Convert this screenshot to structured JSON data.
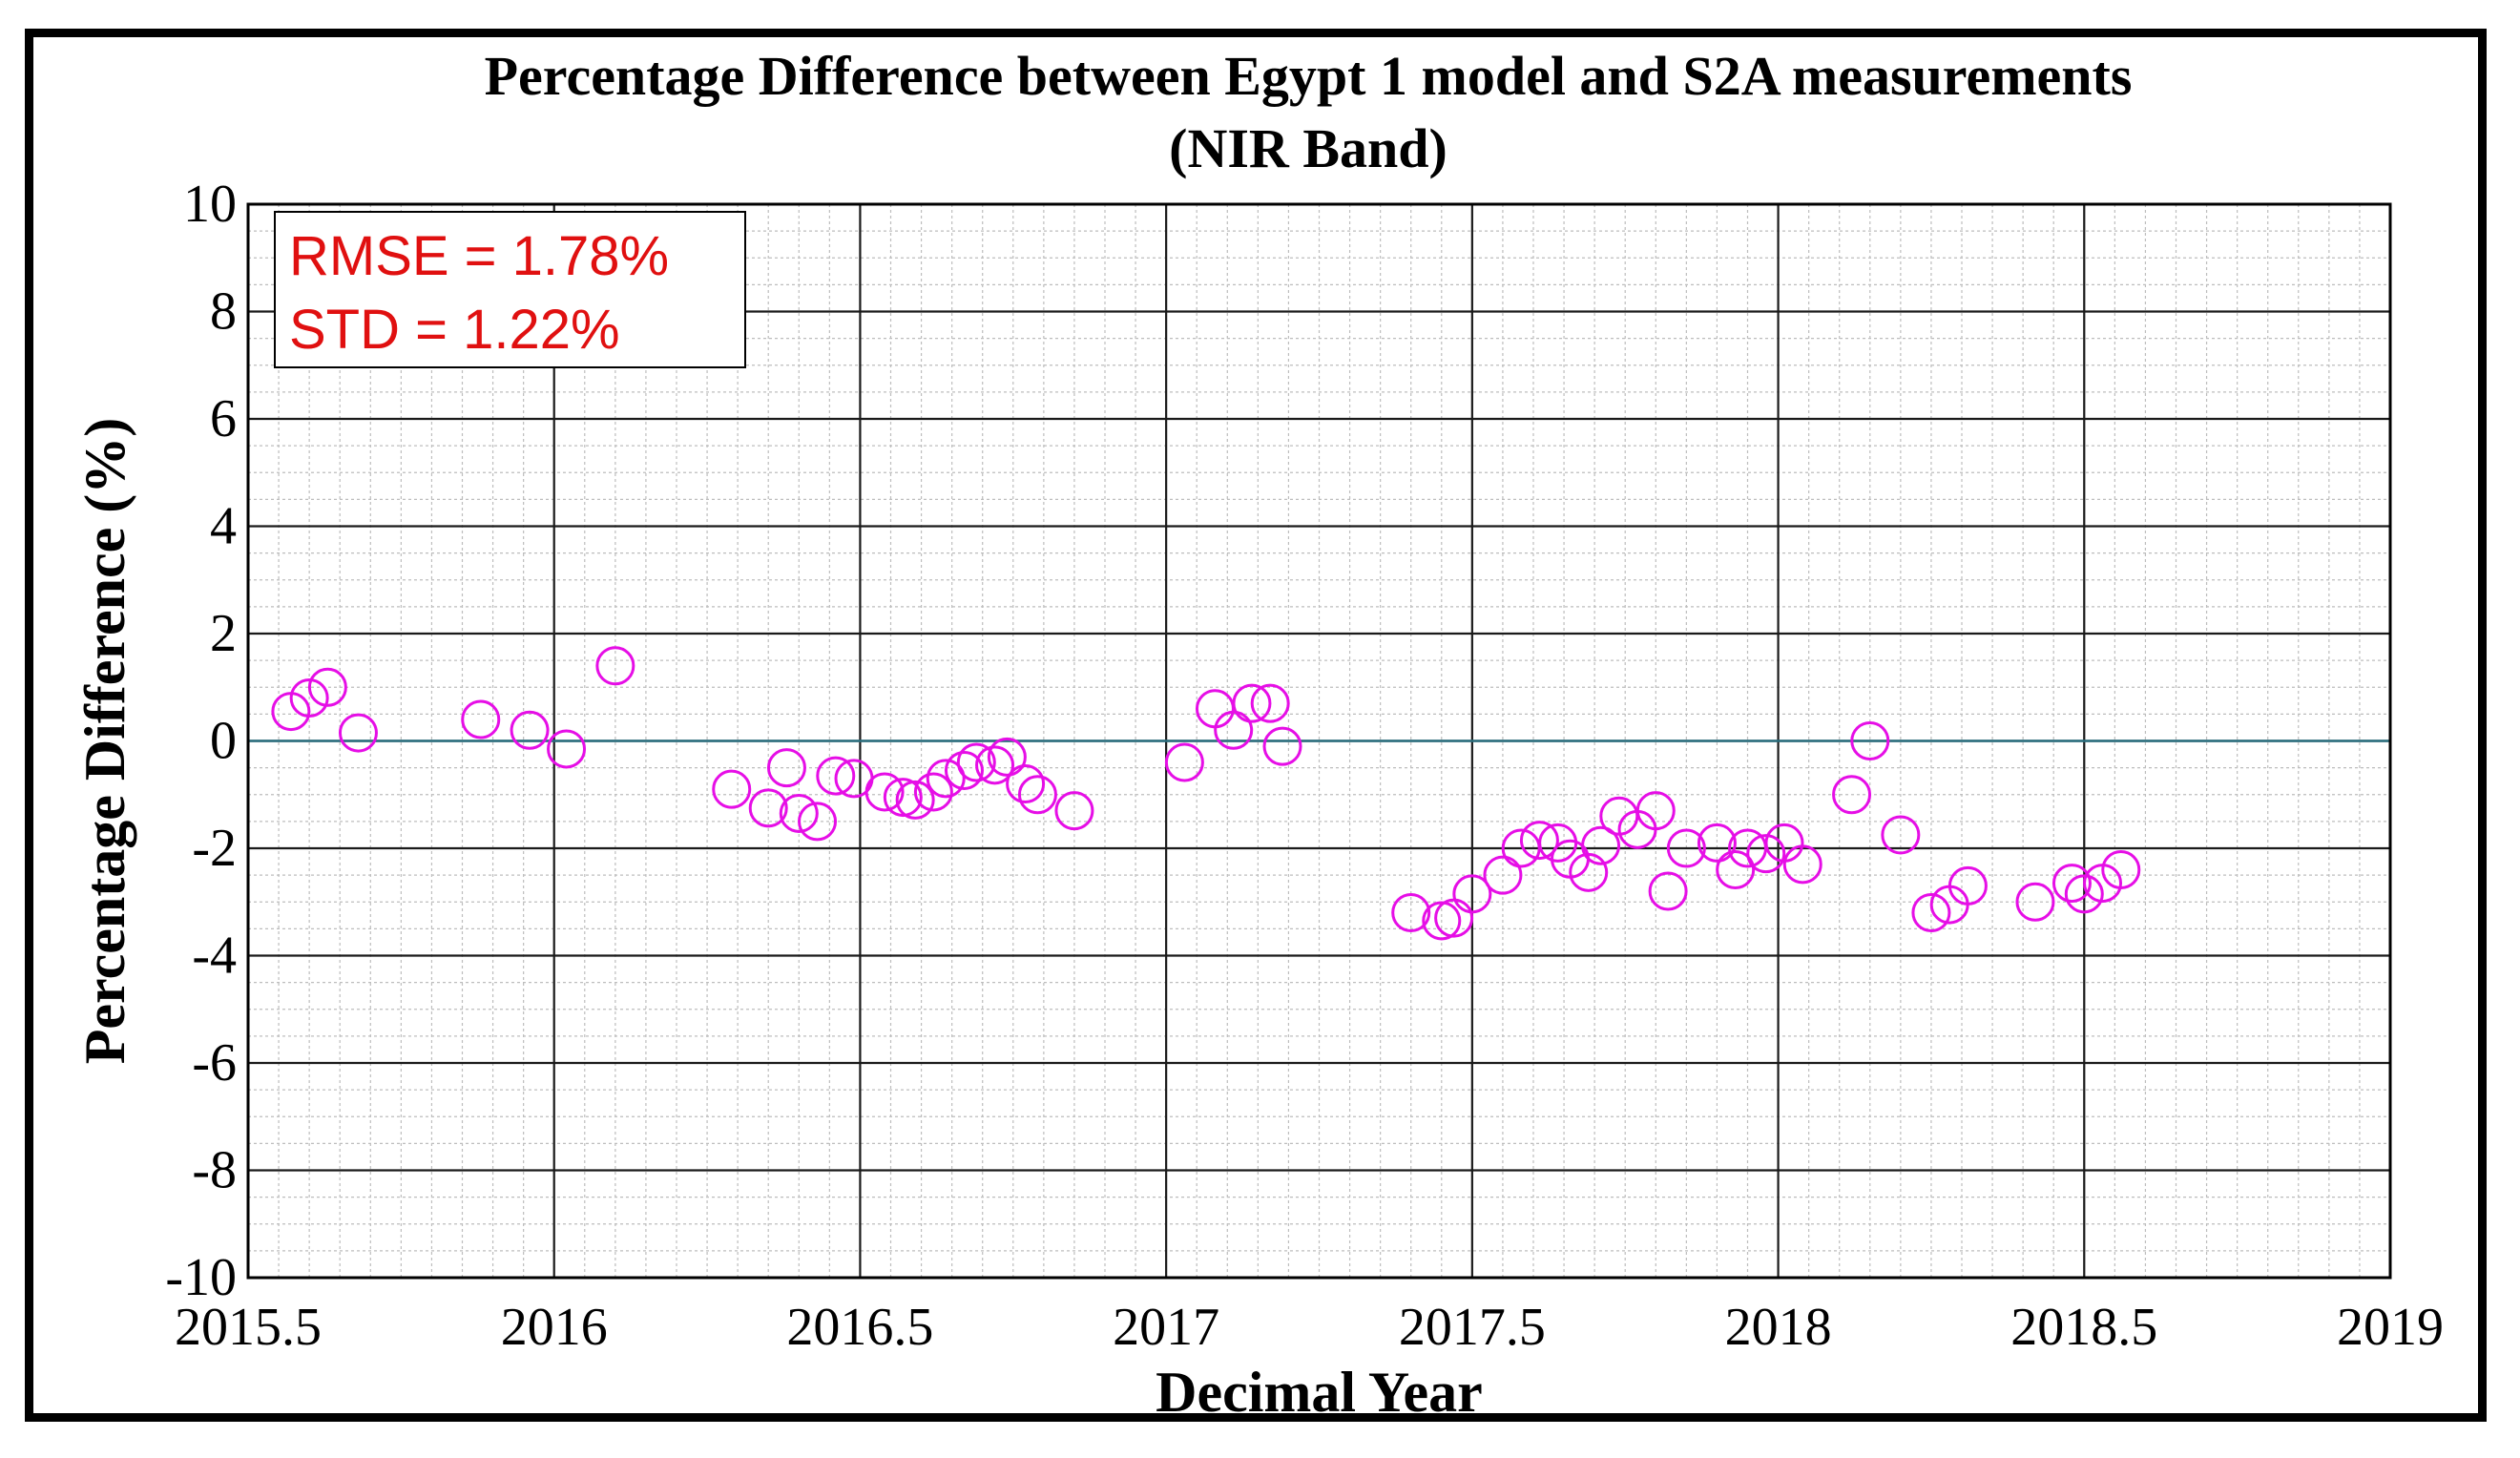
{
  "colors": {
    "marker": "#e60ee6",
    "annotation": "#e01010",
    "zero_line": "#2a6f7f",
    "grid_major": "#1a1a1a",
    "grid_minor": "#bdbdbd"
  },
  "annotation": {
    "rmse": "RMSE  = 1.78%",
    "std": "STD  = 1.22%"
  },
  "chart_data": {
    "type": "scatter",
    "title": "Percentage Difference between Egypt 1 model and  S2A measurements",
    "subtitle": "(NIR Band)",
    "xlabel": "Decimal Year",
    "ylabel": "Percentage Difference (%)",
    "xlim": [
      2015.5,
      2019
    ],
    "ylim": [
      -10,
      10
    ],
    "x_ticks": [
      2015.5,
      2016,
      2016.5,
      2017,
      2017.5,
      2018,
      2018.5,
      2019
    ],
    "x_tick_labels": [
      "2015.5",
      "2016",
      "2016.5",
      "2017",
      "2017.5",
      "2018",
      "2018.5",
      "2019"
    ],
    "y_ticks": [
      10,
      8,
      6,
      4,
      2,
      0,
      -2,
      -4,
      -6,
      -8,
      -10
    ],
    "y_tick_labels": [
      "10",
      "8",
      "6",
      "4",
      "2",
      "0",
      "-2",
      "-4",
      "-6",
      "-8",
      "-10"
    ],
    "grid": true,
    "marker": "open-circle",
    "series": [
      {
        "name": "Percentage Difference",
        "points": [
          [
            2015.57,
            0.55
          ],
          [
            2015.6,
            0.8
          ],
          [
            2015.63,
            1.0
          ],
          [
            2015.68,
            0.15
          ],
          [
            2015.88,
            0.4
          ],
          [
            2015.96,
            0.2
          ],
          [
            2016.02,
            -0.15
          ],
          [
            2016.1,
            1.4
          ],
          [
            2016.29,
            -0.9
          ],
          [
            2016.35,
            -1.25
          ],
          [
            2016.38,
            -0.5
          ],
          [
            2016.4,
            -1.35
          ],
          [
            2016.43,
            -1.5
          ],
          [
            2016.46,
            -0.65
          ],
          [
            2016.49,
            -0.7
          ],
          [
            2016.54,
            -0.95
          ],
          [
            2016.57,
            -1.05
          ],
          [
            2016.59,
            -1.1
          ],
          [
            2016.62,
            -0.95
          ],
          [
            2016.64,
            -0.7
          ],
          [
            2016.67,
            -0.55
          ],
          [
            2016.69,
            -0.4
          ],
          [
            2016.72,
            -0.45
          ],
          [
            2016.74,
            -0.3
          ],
          [
            2016.77,
            -0.8
          ],
          [
            2016.79,
            -1.0
          ],
          [
            2016.85,
            -1.3
          ],
          [
            2017.03,
            -0.4
          ],
          [
            2017.08,
            0.6
          ],
          [
            2017.11,
            0.2
          ],
          [
            2017.14,
            0.7
          ],
          [
            2017.17,
            0.7
          ],
          [
            2017.19,
            -0.1
          ],
          [
            2017.4,
            -3.2
          ],
          [
            2017.45,
            -3.35
          ],
          [
            2017.47,
            -3.3
          ],
          [
            2017.5,
            -2.85
          ],
          [
            2017.55,
            -2.5
          ],
          [
            2017.58,
            -2.0
          ],
          [
            2017.61,
            -1.85
          ],
          [
            2017.64,
            -1.9
          ],
          [
            2017.66,
            -2.2
          ],
          [
            2017.69,
            -2.45
          ],
          [
            2017.71,
            -1.95
          ],
          [
            2017.74,
            -1.4
          ],
          [
            2017.77,
            -1.65
          ],
          [
            2017.8,
            -1.3
          ],
          [
            2017.82,
            -2.8
          ],
          [
            2017.85,
            -2.0
          ],
          [
            2017.9,
            -1.9
          ],
          [
            2017.93,
            -2.4
          ],
          [
            2017.95,
            -2.0
          ],
          [
            2017.98,
            -2.1
          ],
          [
            2018.01,
            -1.9
          ],
          [
            2018.04,
            -2.3
          ],
          [
            2018.12,
            -1.0
          ],
          [
            2018.15,
            0.0
          ],
          [
            2018.2,
            -1.75
          ],
          [
            2018.25,
            -3.2
          ],
          [
            2018.28,
            -3.05
          ],
          [
            2018.31,
            -2.7
          ],
          [
            2018.42,
            -3.0
          ],
          [
            2018.48,
            -2.65
          ],
          [
            2018.5,
            -2.85
          ],
          [
            2018.53,
            -2.65
          ],
          [
            2018.56,
            -2.4
          ]
        ]
      }
    ]
  }
}
